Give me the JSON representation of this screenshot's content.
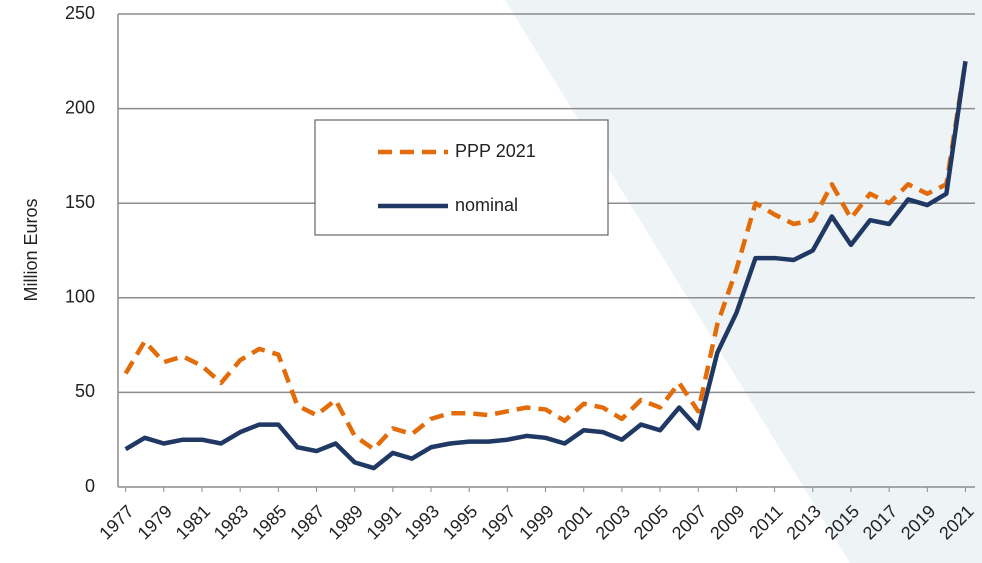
{
  "chart_data": {
    "type": "line",
    "ylabel": "Million Euros",
    "x": [
      1977,
      1978,
      1979,
      1980,
      1981,
      1982,
      1983,
      1984,
      1985,
      1986,
      1987,
      1988,
      1989,
      1990,
      1991,
      1992,
      1993,
      1994,
      1995,
      1996,
      1997,
      1998,
      1999,
      2000,
      2001,
      2002,
      2003,
      2004,
      2005,
      2006,
      2007,
      2008,
      2009,
      2010,
      2011,
      2012,
      2013,
      2014,
      2015,
      2016,
      2017,
      2018,
      2019,
      2020,
      2021
    ],
    "series": [
      {
        "name": "PPP 2021",
        "color": "#e36c0a",
        "dashed": true,
        "values": [
          60,
          77,
          66,
          69,
          64,
          55,
          67,
          73,
          70,
          43,
          38,
          46,
          27,
          20,
          31,
          28,
          36,
          39,
          39,
          38,
          40,
          42,
          41,
          35,
          44,
          42,
          36,
          46,
          42,
          55,
          40,
          86,
          115,
          150,
          144,
          139,
          141,
          160,
          142,
          155,
          150,
          160,
          155,
          160,
          225
        ]
      },
      {
        "name": "nominal",
        "color": "#1f3864",
        "dashed": false,
        "values": [
          20,
          26,
          23,
          25,
          25,
          23,
          29,
          33,
          33,
          21,
          19,
          23,
          13,
          10,
          18,
          15,
          21,
          23,
          24,
          24,
          25,
          27,
          26,
          23,
          30,
          29,
          25,
          33,
          30,
          42,
          31,
          71,
          92,
          121,
          121,
          120,
          125,
          143,
          128,
          141,
          139,
          152,
          149,
          155,
          225
        ]
      }
    ],
    "xlim": [
      1976.6,
      2021.5
    ],
    "xticks": [
      1977,
      1979,
      1981,
      1983,
      1985,
      1987,
      1989,
      1991,
      1993,
      1995,
      1997,
      1999,
      2001,
      2003,
      2005,
      2007,
      2009,
      2011,
      2013,
      2015,
      2017,
      2019,
      2021
    ],
    "ylim": [
      0,
      250
    ],
    "yticks": [
      0,
      50,
      100,
      150,
      200,
      250
    ],
    "grid": true
  }
}
